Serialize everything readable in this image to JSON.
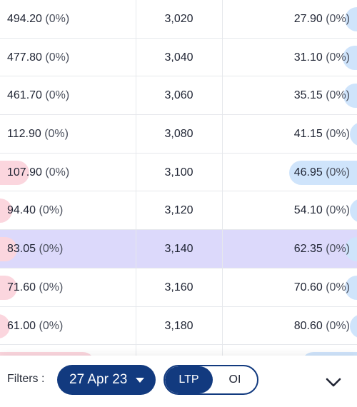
{
  "rows": [
    {
      "call_ltp": "494.20",
      "call_chg": "(0%)",
      "strike": "3,020",
      "put_ltp": "27.90",
      "put_chg": "(0%)",
      "call_oi_bar": 0,
      "put_oi_bar": 0.1
    },
    {
      "call_ltp": "477.80",
      "call_chg": "(0%)",
      "strike": "3,040",
      "put_ltp": "31.10",
      "put_chg": "(0%)",
      "call_oi_bar": 0,
      "put_oi_bar": 0.12
    },
    {
      "call_ltp": "461.70",
      "call_chg": "(0%)",
      "strike": "3,060",
      "put_ltp": "35.15",
      "put_chg": "(0%)",
      "call_oi_bar": 0,
      "put_oi_bar": 0.11
    },
    {
      "call_ltp": "112.90",
      "call_chg": "(0%)",
      "strike": "3,080",
      "put_ltp": "41.15",
      "put_chg": "(0%)",
      "call_oi_bar": 0,
      "put_oi_bar": 0.06
    },
    {
      "call_ltp": "107.90",
      "call_chg": "(0%)",
      "strike": "3,100",
      "put_ltp": "46.95",
      "put_chg": "(0%)",
      "call_oi_bar": 0.24,
      "put_oi_bar": 0.56
    },
    {
      "call_ltp": "94.40",
      "call_chg": "(0%)",
      "strike": "3,120",
      "put_ltp": "54.10",
      "put_chg": "(0%)",
      "call_oi_bar": 0.1,
      "put_oi_bar": 0.06
    },
    {
      "call_ltp": "83.05",
      "call_chg": "(0%)",
      "strike": "3,140",
      "put_ltp": "62.35",
      "put_chg": "(0%)",
      "call_oi_bar": 0.14,
      "put_oi_bar": 0.1,
      "atm": true
    },
    {
      "call_ltp": "71.60",
      "call_chg": "(0%)",
      "strike": "3,160",
      "put_ltp": "70.60",
      "put_chg": "(0%)",
      "call_oi_bar": 0.14,
      "put_oi_bar": 0.1
    },
    {
      "call_ltp": "61.00",
      "call_chg": "(0%)",
      "strike": "3,180",
      "put_ltp": "80.60",
      "put_chg": "(0%)",
      "call_oi_bar": 0.08,
      "put_oi_bar": 0.06
    },
    {
      "call_ltp": "",
      "call_chg": "",
      "strike": "",
      "put_ltp": "",
      "put_chg": "",
      "call_oi_bar": 0.78,
      "put_oi_bar": 0.46
    }
  ],
  "filters": {
    "label": "Filters :",
    "expiry": "27 Apr 23",
    "toggle": {
      "ltp": "LTP",
      "oi": "OI",
      "selected": "LTP"
    },
    "collapse_icon": "chevron-down-icon"
  },
  "colors": {
    "accent": "#123a7f",
    "call_bar": "#fbd6de",
    "put_bar": "#cfe4fb",
    "atm_row": "#dcd9fb"
  }
}
